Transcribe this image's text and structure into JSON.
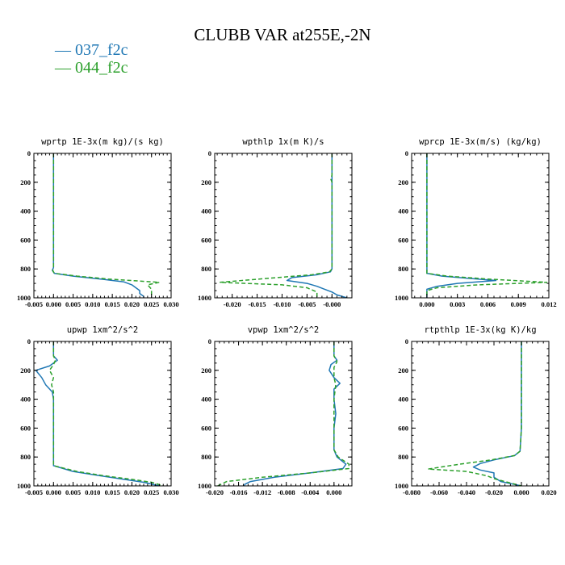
{
  "figure": {
    "title": "CLUBB VAR at255E,-2N"
  },
  "legend": [
    {
      "label": "— 037_f2c",
      "color": "#1f77b4"
    },
    {
      "label": "— 044_f2c",
      "color": "#2ca02c"
    }
  ],
  "chart_data": [
    {
      "type": "line",
      "title": "wprtp  1E-3x(m kg)/(s kg)",
      "xlim": [
        -0.005,
        0.03
      ],
      "ylim": [
        1000,
        0
      ],
      "xticks": [
        "-0.005",
        "0.000",
        "0.005",
        "0.010",
        "0.015",
        "0.020",
        "0.025",
        "0.030"
      ],
      "xtick_values": [
        -0.005,
        0.0,
        0.005,
        0.01,
        0.015,
        0.02,
        0.025,
        0.03
      ],
      "yticks": [
        "0",
        "200",
        "400",
        "600",
        "800",
        "1000"
      ],
      "ytick_values": [
        0,
        200,
        400,
        600,
        800,
        1000
      ],
      "series": [
        {
          "name": "037_f2c",
          "color": "#1f77b4",
          "dash": "",
          "points": [
            [
              0.0,
              0
            ],
            [
              0.0,
              200
            ],
            [
              0.0,
              400
            ],
            [
              0.0,
              600
            ],
            [
              0.0,
              760
            ],
            [
              0.0,
              790
            ],
            [
              -0.0003,
              810
            ],
            [
              0.0002,
              830
            ],
            [
              0.005,
              850
            ],
            [
              0.012,
              870
            ],
            [
              0.018,
              890
            ],
            [
              0.02,
              910
            ],
            [
              0.021,
              930
            ],
            [
              0.022,
              950
            ],
            [
              0.022,
              970
            ],
            [
              0.023,
              990
            ],
            [
              0.023,
              1000
            ]
          ]
        },
        {
          "name": "044_f2c",
          "color": "#2ca02c",
          "dash": "5,3",
          "points": [
            [
              0.0,
              0
            ],
            [
              0.0,
              200
            ],
            [
              0.0,
              400
            ],
            [
              0.0,
              600
            ],
            [
              0.0,
              760
            ],
            [
              0.0,
              790
            ],
            [
              -0.0002,
              810
            ],
            [
              0.0002,
              830
            ],
            [
              0.006,
              850
            ],
            [
              0.014,
              870
            ],
            [
              0.027,
              893
            ],
            [
              0.024,
              910
            ],
            [
              0.025,
              940
            ],
            [
              0.025,
              970
            ],
            [
              0.025,
              1000
            ]
          ]
        }
      ]
    },
    {
      "type": "line",
      "title": "wpthlp  1x(m K)/s",
      "xlim": [
        -0.0235,
        0.004
      ],
      "ylim": [
        1000,
        0
      ],
      "xticks": [
        "-0.020",
        "-0.015",
        "-0.010",
        "-0.005",
        "-0.000"
      ],
      "xtick_values": [
        -0.02,
        -0.015,
        -0.01,
        -0.005,
        0.0
      ],
      "yticks": [
        "0",
        "200",
        "400",
        "600",
        "800",
        "1000"
      ],
      "ytick_values": [
        0,
        200,
        400,
        600,
        800,
        1000
      ],
      "series": [
        {
          "name": "037_f2c",
          "color": "#1f77b4",
          "dash": "",
          "points": [
            [
              0.0,
              0
            ],
            [
              0.0,
              200
            ],
            [
              0.0,
              400
            ],
            [
              0.0,
              600
            ],
            [
              0.0,
              760
            ],
            [
              0.0,
              800
            ],
            [
              -0.0003,
              820
            ],
            [
              -0.003,
              840
            ],
            [
              -0.008,
              860
            ],
            [
              -0.009,
              880
            ],
            [
              -0.005,
              900
            ],
            [
              -0.003,
              920
            ],
            [
              -0.0015,
              940
            ],
            [
              0.0,
              960
            ],
            [
              0.001,
              980
            ],
            [
              0.003,
              1000
            ]
          ]
        },
        {
          "name": "044_f2c",
          "color": "#2ca02c",
          "dash": "5,3",
          "points": [
            [
              0.0,
              0
            ],
            [
              0.0,
              150
            ],
            [
              -0.0002,
              180
            ],
            [
              0.0,
              200
            ],
            [
              0.0,
              400
            ],
            [
              0.0,
              600
            ],
            [
              0.0,
              760
            ],
            [
              0.0,
              800
            ],
            [
              -0.0005,
              820
            ],
            [
              -0.004,
              840
            ],
            [
              -0.011,
              860
            ],
            [
              -0.0225,
              893
            ],
            [
              -0.01,
              910
            ],
            [
              -0.005,
              930
            ],
            [
              -0.003,
              960
            ],
            [
              -0.003,
              1000
            ]
          ]
        }
      ]
    },
    {
      "type": "line",
      "title": "wprcp  1E-3x(m/s) (kg/kg)",
      "xlim": [
        -0.0015,
        0.012
      ],
      "ylim": [
        1000,
        0
      ],
      "xticks": [
        "0.000",
        "0.003",
        "0.006",
        "0.009",
        "0.012"
      ],
      "xtick_values": [
        0.0,
        0.003,
        0.006,
        0.009,
        0.012
      ],
      "yticks": [
        "0",
        "200",
        "400",
        "600",
        "800",
        "1000"
      ],
      "ytick_values": [
        0,
        200,
        400,
        600,
        800,
        1000
      ],
      "series": [
        {
          "name": "037_f2c",
          "color": "#1f77b4",
          "dash": "",
          "points": [
            [
              0.0,
              0
            ],
            [
              0.0,
              200
            ],
            [
              0.0,
              400
            ],
            [
              0.0,
              600
            ],
            [
              0.0,
              800
            ],
            [
              0.0,
              830
            ],
            [
              0.0015,
              850
            ],
            [
              0.005,
              870
            ],
            [
              0.0068,
              880
            ],
            [
              0.003,
              900
            ],
            [
              0.001,
              920
            ],
            [
              0.0,
              940
            ],
            [
              0.0,
              1000
            ]
          ]
        },
        {
          "name": "044_f2c",
          "color": "#2ca02c",
          "dash": "5,3",
          "points": [
            [
              0.0,
              0
            ],
            [
              0.0,
              200
            ],
            [
              0.0,
              400
            ],
            [
              0.0,
              600
            ],
            [
              0.0,
              800
            ],
            [
              0.0,
              830
            ],
            [
              0.002,
              850
            ],
            [
              0.006,
              870
            ],
            [
              0.0118,
              893
            ],
            [
              0.005,
              910
            ],
            [
              0.001,
              930
            ],
            [
              0.0,
              950
            ],
            [
              0.0,
              1000
            ]
          ]
        }
      ]
    },
    {
      "type": "line",
      "title": "upwp  1xm^2/s^2",
      "xlim": [
        -0.005,
        0.03
      ],
      "ylim": [
        1000,
        0
      ],
      "xticks": [
        "-0.005",
        "0.000",
        "0.005",
        "0.010",
        "0.015",
        "0.020",
        "0.025",
        "0.030"
      ],
      "xtick_values": [
        -0.005,
        0.0,
        0.005,
        0.01,
        0.015,
        0.02,
        0.025,
        0.03
      ],
      "yticks": [
        "0",
        "200",
        "400",
        "600",
        "800",
        "1000"
      ],
      "ytick_values": [
        0,
        200,
        400,
        600,
        800,
        1000
      ],
      "series": [
        {
          "name": "037_f2c",
          "color": "#1f77b4",
          "dash": "",
          "points": [
            [
              0.0,
              0
            ],
            [
              0.0,
              100
            ],
            [
              0.001,
              130
            ],
            [
              -0.001,
              170
            ],
            [
              -0.0045,
              200
            ],
            [
              -0.003,
              250
            ],
            [
              -0.002,
              300
            ],
            [
              -0.0003,
              350
            ],
            [
              0.0,
              400
            ],
            [
              0.0,
              600
            ],
            [
              0.0,
              800
            ],
            [
              0.0,
              860
            ],
            [
              0.005,
              900
            ],
            [
              0.012,
              930
            ],
            [
              0.018,
              955
            ],
            [
              0.023,
              975
            ],
            [
              0.027,
              1000
            ]
          ]
        },
        {
          "name": "044_f2c",
          "color": "#2ca02c",
          "dash": "5,3",
          "points": [
            [
              0.0,
              0
            ],
            [
              0.0,
              100
            ],
            [
              0.0005,
              130
            ],
            [
              0.0,
              160
            ],
            [
              -0.001,
              200
            ],
            [
              0.0,
              250
            ],
            [
              -0.0005,
              300
            ],
            [
              0.0,
              350
            ],
            [
              0.0,
              400
            ],
            [
              0.0,
              600
            ],
            [
              0.0,
              800
            ],
            [
              0.0,
              860
            ],
            [
              0.006,
              900
            ],
            [
              0.013,
              930
            ],
            [
              0.02,
              955
            ],
            [
              0.025,
              975
            ],
            [
              0.028,
              1000
            ]
          ]
        }
      ]
    },
    {
      "type": "line",
      "title": "vpwp  1xm^2/s^2",
      "xlim": [
        -0.02,
        0.003
      ],
      "ylim": [
        1000,
        0
      ],
      "xticks": [
        "-0.020",
        "-0.016",
        "-0.012",
        "-0.008",
        "-0.004",
        "0.000"
      ],
      "xtick_values": [
        -0.02,
        -0.016,
        -0.012,
        -0.008,
        -0.004,
        0.0
      ],
      "yticks": [
        "0",
        "200",
        "400",
        "600",
        "800",
        "1000"
      ],
      "ytick_values": [
        0,
        200,
        400,
        600,
        800,
        1000
      ],
      "series": [
        {
          "name": "037_f2c",
          "color": "#1f77b4",
          "dash": "",
          "points": [
            [
              0.0,
              0
            ],
            [
              0.0,
              100
            ],
            [
              0.0005,
              130
            ],
            [
              -0.0005,
              160
            ],
            [
              -0.0008,
              200
            ],
            [
              0.0,
              250
            ],
            [
              0.001,
              290
            ],
            [
              0.0,
              330
            ],
            [
              0.0,
              400
            ],
            [
              0.0003,
              500
            ],
            [
              0.0,
              600
            ],
            [
              0.0,
              750
            ],
            [
              0.0005,
              800
            ],
            [
              0.002,
              850
            ],
            [
              0.0015,
              880
            ],
            [
              -0.004,
              910
            ],
            [
              -0.01,
              940
            ],
            [
              -0.014,
              970
            ],
            [
              -0.015,
              990
            ],
            [
              -0.015,
              1000
            ]
          ]
        },
        {
          "name": "044_f2c",
          "color": "#2ca02c",
          "dash": "5,3",
          "points": [
            [
              0.0,
              0
            ],
            [
              0.0,
              100
            ],
            [
              0.0005,
              140
            ],
            [
              0.0,
              180
            ],
            [
              0.0,
              250
            ],
            [
              0.0003,
              300
            ],
            [
              0.0,
              400
            ],
            [
              0.0,
              600
            ],
            [
              0.0,
              750
            ],
            [
              0.0007,
              800
            ],
            [
              0.0025,
              850
            ],
            [
              0.0025,
              880
            ],
            [
              -0.004,
              910
            ],
            [
              -0.012,
              940
            ],
            [
              -0.018,
              970
            ],
            [
              -0.0195,
              1000
            ]
          ]
        }
      ]
    },
    {
      "type": "line",
      "title": "rtpthlp  1E-3x(kg K)/kg",
      "xlim": [
        -0.08,
        0.02
      ],
      "ylim": [
        1000,
        0
      ],
      "xticks": [
        "-0.080",
        "-0.060",
        "-0.040",
        "-0.020",
        "0.000",
        "0.020"
      ],
      "xtick_values": [
        -0.08,
        -0.06,
        -0.04,
        -0.02,
        0.0,
        0.02
      ],
      "yticks": [
        "0",
        "200",
        "400",
        "600",
        "800",
        "1000"
      ],
      "ytick_values": [
        0,
        200,
        400,
        600,
        800,
        1000
      ],
      "series": [
        {
          "name": "037_f2c",
          "color": "#1f77b4",
          "dash": "",
          "points": [
            [
              0.0,
              0
            ],
            [
              0.0,
              200
            ],
            [
              0.0,
              400
            ],
            [
              0.0,
              600
            ],
            [
              -0.001,
              760
            ],
            [
              -0.005,
              790
            ],
            [
              -0.02,
              820
            ],
            [
              -0.03,
              845
            ],
            [
              -0.035,
              870
            ],
            [
              -0.03,
              890
            ],
            [
              -0.02,
              910
            ],
            [
              -0.02,
              940
            ],
            [
              -0.015,
              970
            ],
            [
              0.0,
              1000
            ]
          ]
        },
        {
          "name": "044_f2c",
          "color": "#2ca02c",
          "dash": "5,3",
          "points": [
            [
              0.0,
              0
            ],
            [
              0.0,
              200
            ],
            [
              0.0,
              400
            ],
            [
              0.0,
              600
            ],
            [
              -0.001,
              760
            ],
            [
              -0.005,
              790
            ],
            [
              -0.022,
              820
            ],
            [
              -0.045,
              850
            ],
            [
              -0.068,
              883
            ],
            [
              -0.04,
              900
            ],
            [
              -0.025,
              930
            ],
            [
              -0.02,
              950
            ],
            [
              -0.01,
              975
            ],
            [
              0.0,
              1000
            ]
          ]
        }
      ]
    }
  ]
}
